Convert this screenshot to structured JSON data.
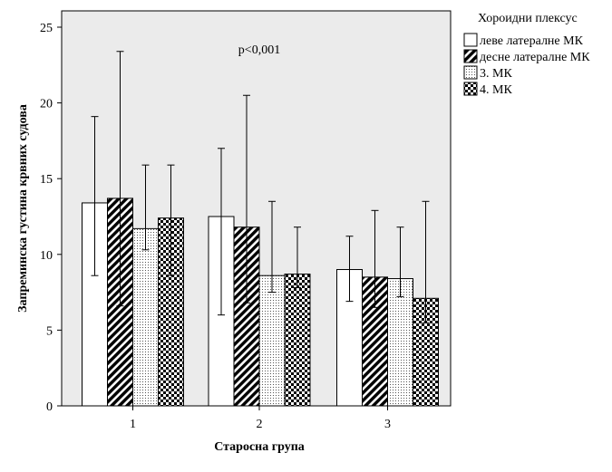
{
  "chart_data": {
    "type": "bar",
    "xlabel": "Старосна група",
    "ylabel": "Запреминска густина крвних судова",
    "annotation": "p<0,001",
    "categories": [
      "1",
      "2",
      "3"
    ],
    "ylim": [
      0,
      25
    ],
    "yticks": [
      0,
      5,
      10,
      15,
      20,
      25
    ],
    "legend": {
      "title": "Хороидни плексус",
      "position": "right"
    },
    "series": [
      {
        "name": "леве латералне МК",
        "pattern": "plain",
        "values": [
          13.4,
          12.5,
          9.0
        ],
        "err_low": [
          8.6,
          6.0,
          6.9
        ],
        "err_high": [
          19.1,
          17.0,
          11.2
        ]
      },
      {
        "name": "десне латералне МК",
        "pattern": "stripe",
        "values": [
          13.7,
          11.8,
          8.5
        ],
        "err_low": [
          6.6,
          6.8,
          6.5
        ],
        "err_high": [
          23.4,
          20.5,
          12.9
        ]
      },
      {
        "name": "3. МК",
        "pattern": "dots",
        "values": [
          11.7,
          8.6,
          8.4
        ],
        "err_low": [
          10.3,
          7.5,
          7.2
        ],
        "err_high": [
          15.9,
          13.5,
          11.8
        ]
      },
      {
        "name": "4. МК",
        "pattern": "checker",
        "values": [
          12.4,
          8.7,
          7.1
        ],
        "err_low": [
          8.6,
          7.8,
          5.5
        ],
        "err_high": [
          15.9,
          11.8,
          13.5
        ]
      }
    ],
    "colors": {
      "plot_bg": "#ebebeb",
      "bar_edge": "#000000"
    }
  }
}
